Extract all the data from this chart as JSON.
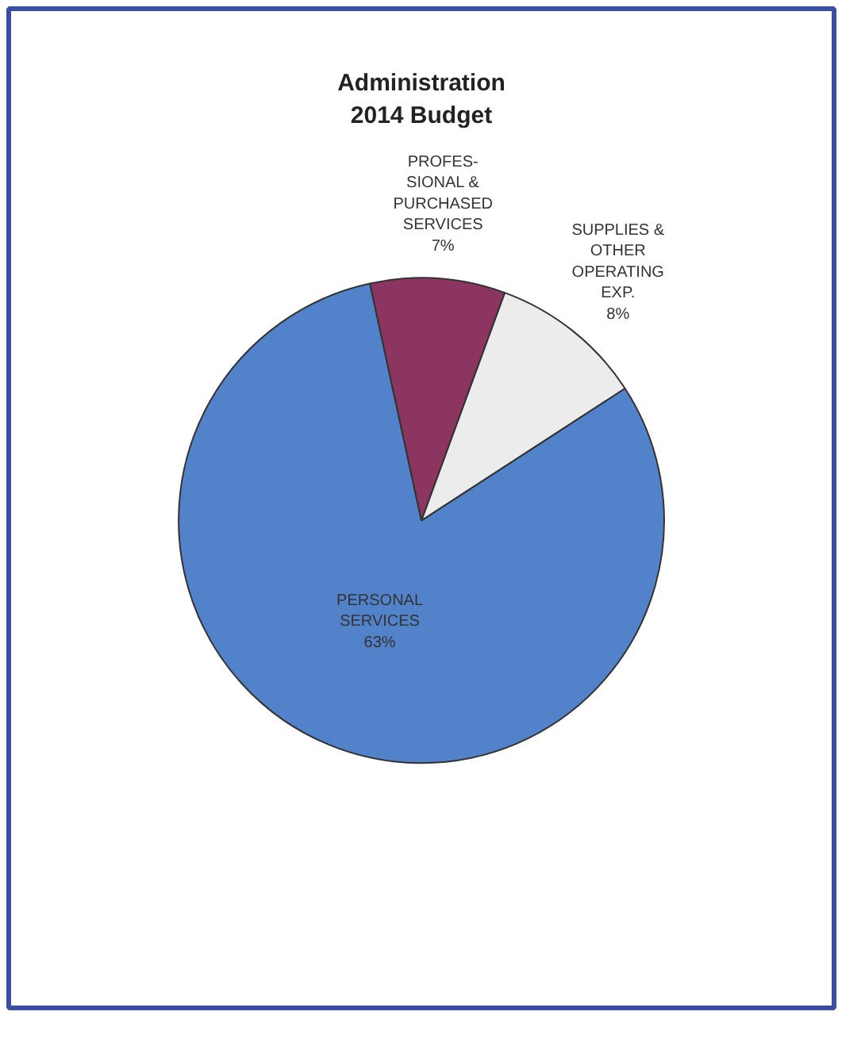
{
  "chart_data": {
    "type": "pie",
    "title": "Administration\n2014 Budget",
    "categories": [
      "PERSONAL\nSERVICES",
      "SUPPLIES &\nOTHER\nOPERATING\nEXP.",
      "PROFES-\nSIONAL &\nPURCHASED\nSERVICES"
    ],
    "values": [
      63,
      8,
      7
    ],
    "colors": [
      "#5282c9",
      "#ececec",
      "#8c3561"
    ],
    "value_labels": [
      "63%",
      "8%",
      "7%"
    ]
  }
}
